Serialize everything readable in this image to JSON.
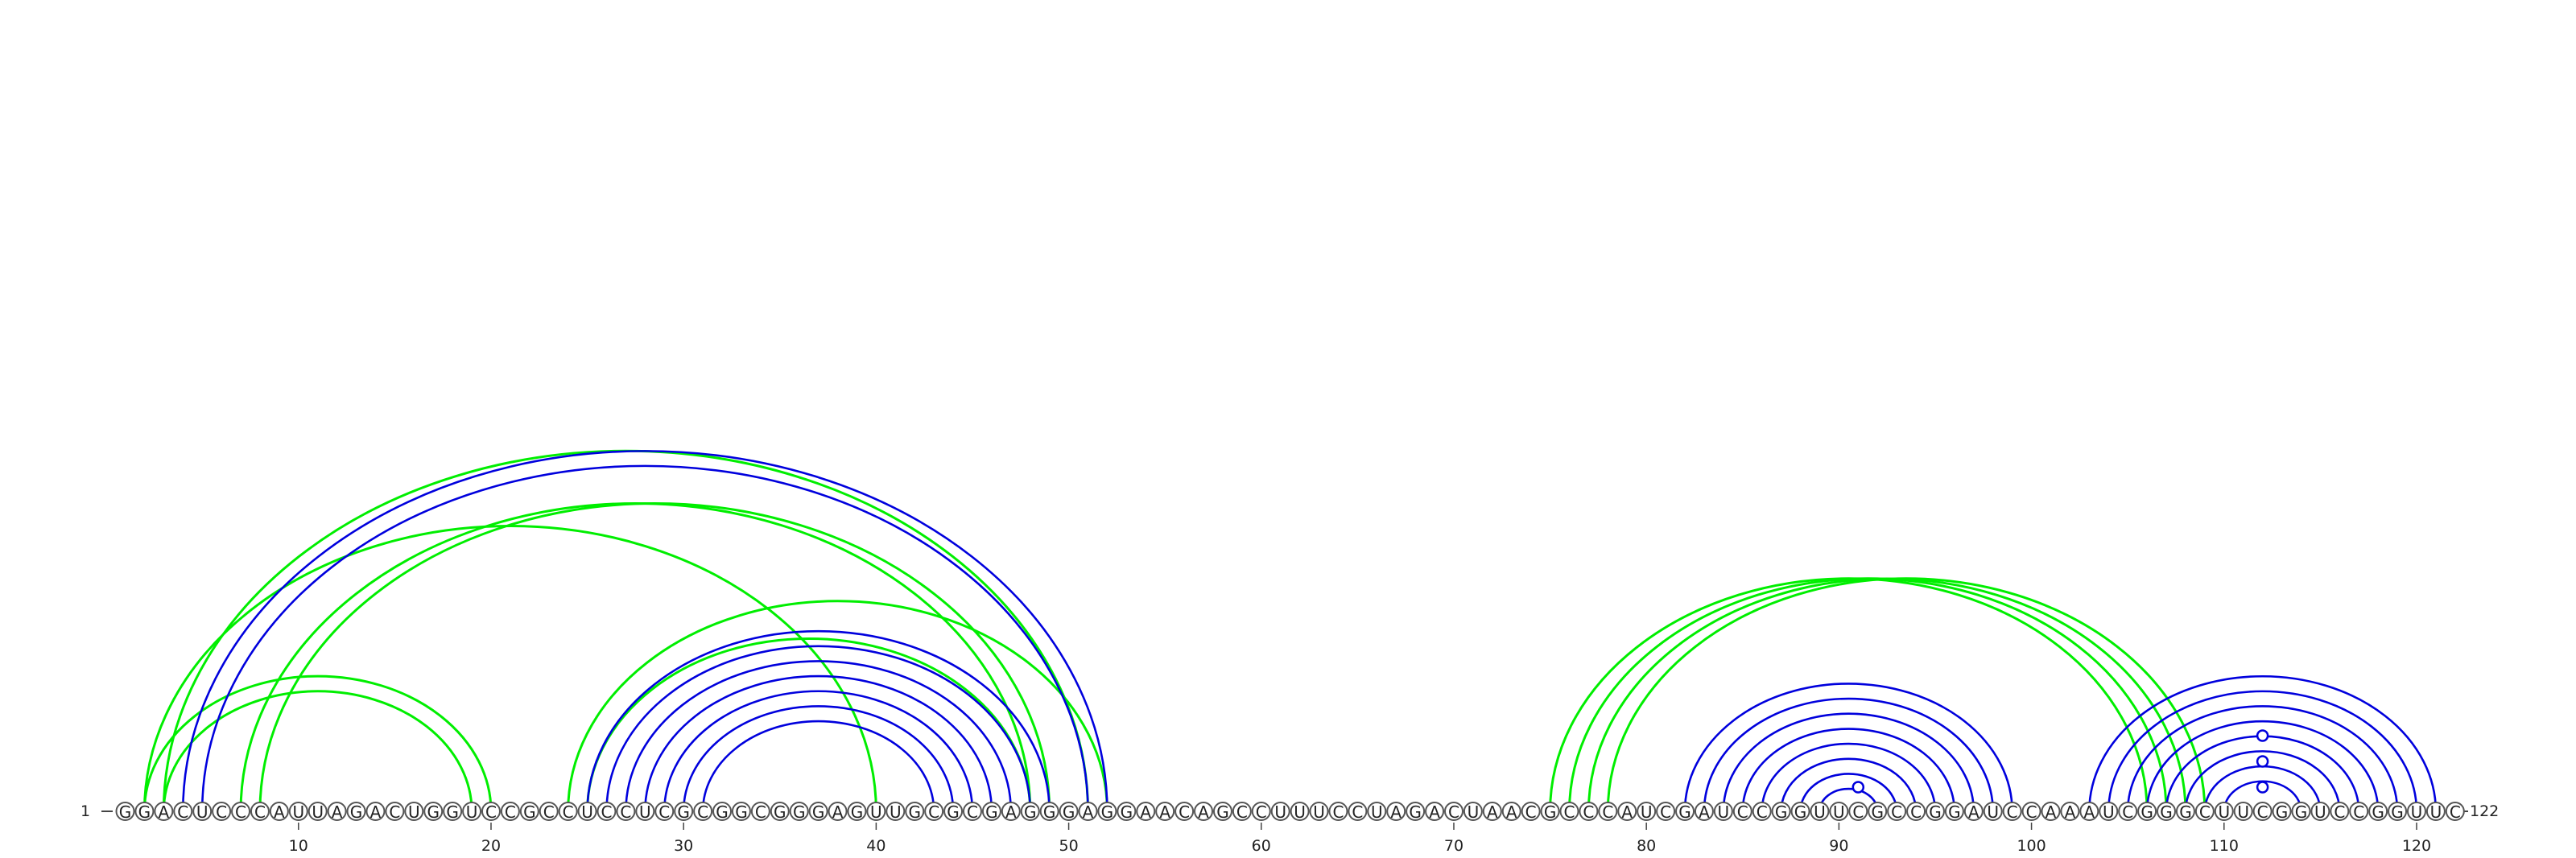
{
  "sequence": {
    "text": "GGACUCCCAUUAGACUGGUCCGCCUCCUCGCGGCGGGAGUUGCGCGAGGGAGGAACAGCCUUUCCUAGACUAACGCCCAUCGAUCCGGUUCGCCGGAUCCAAAUCGGGCUUCGGUCCGGUUC",
    "start_label": "1",
    "end_label": "122",
    "ticks": [
      10,
      20,
      30,
      40,
      50,
      60,
      70,
      80,
      90,
      100,
      110,
      120
    ]
  },
  "colors": {
    "blue": "#0000dd",
    "green": "#00ee00",
    "circle_stroke": "#555555"
  },
  "blue_arcs": [
    [
      4,
      52
    ],
    [
      5,
      51
    ],
    [
      25,
      49
    ],
    [
      26,
      48
    ],
    [
      27,
      47
    ],
    [
      28,
      46
    ],
    [
      29,
      45
    ],
    [
      30,
      44
    ],
    [
      31,
      43
    ],
    [
      82,
      99
    ],
    [
      83,
      98
    ],
    [
      84,
      97
    ],
    [
      85,
      96
    ],
    [
      86,
      95
    ],
    [
      87,
      94
    ],
    [
      88,
      93
    ],
    [
      89,
      92
    ],
    [
      103,
      121
    ],
    [
      104,
      120
    ],
    [
      105,
      119
    ],
    [
      106,
      118
    ],
    [
      107,
      117
    ],
    [
      108,
      116
    ],
    [
      109,
      115
    ],
    [
      110,
      114
    ]
  ],
  "green_arcs": [
    [
      2,
      20
    ],
    [
      3,
      19
    ],
    [
      2,
      40
    ],
    [
      3,
      51
    ],
    [
      7,
      48
    ],
    [
      8,
      49
    ],
    [
      24,
      52
    ],
    [
      25,
      48
    ],
    [
      75,
      106
    ],
    [
      76,
      107
    ],
    [
      77,
      108
    ],
    [
      78,
      109
    ]
  ],
  "markers": [
    91,
    112,
    112,
    112
  ]
}
